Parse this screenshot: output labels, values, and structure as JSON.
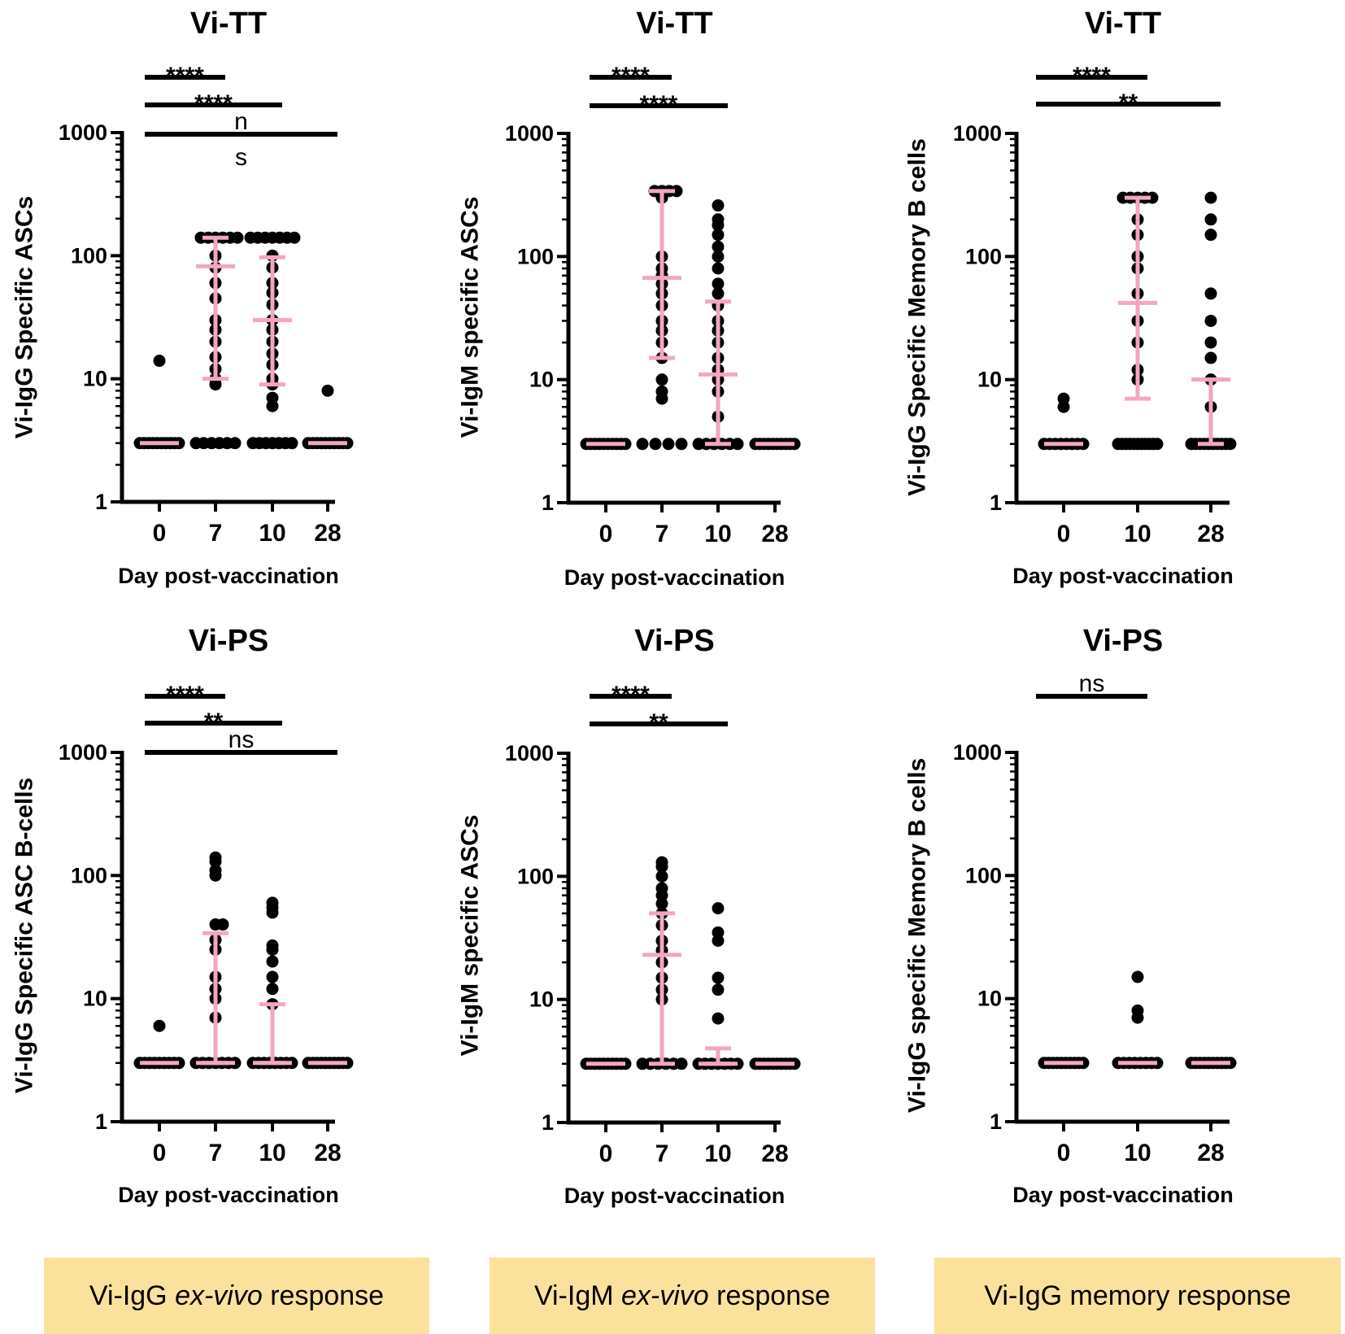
{
  "chart_data": [
    {
      "type": "scatter",
      "panel": "Vi-IgG ex-vivo, Vi-TT",
      "title": "Vi-TT",
      "ylabel": "Vi-IgG Specific ASCs",
      "xlabel": "Day post-vaccination",
      "yscale": "log",
      "ylim": [
        1,
        1000
      ],
      "ytick_labels": [
        "1",
        "10",
        "100",
        "1000"
      ],
      "categories": [
        "0",
        "7",
        "10",
        "28"
      ],
      "points": [
        [
          3,
          3,
          3,
          3,
          3,
          3,
          3,
          3,
          3,
          3,
          14
        ],
        [
          3,
          3,
          3,
          3,
          3,
          3,
          9,
          10,
          12,
          15,
          20,
          25,
          30,
          45,
          60,
          80,
          100,
          140,
          140,
          140,
          140,
          140,
          140
        ],
        [
          3,
          3,
          3,
          3,
          3,
          3,
          3,
          6,
          7,
          9,
          10,
          13,
          16,
          20,
          25,
          30,
          40,
          50,
          60,
          80,
          100,
          140,
          140,
          140,
          140,
          140,
          140,
          140
        ],
        [
          3,
          3,
          3,
          3,
          3,
          3,
          3,
          3,
          3,
          3,
          8
        ]
      ],
      "center": [
        3,
        82,
        30,
        3
      ],
      "error_low": [
        3,
        10,
        9,
        3
      ],
      "error_high": [
        3,
        140,
        97,
        3
      ],
      "significance": [
        {
          "from": "0",
          "to": "7",
          "label": "****"
        },
        {
          "from": "0",
          "to": "10",
          "label": "****"
        },
        {
          "from": "0",
          "to": "28",
          "label": "n",
          "label2": "s"
        }
      ]
    },
    {
      "type": "scatter",
      "panel": "Vi-IgM ex-vivo, Vi-TT",
      "title": "Vi-TT",
      "ylabel": "Vi-IgM specific ASCs",
      "xlabel": "Day post-vaccination",
      "yscale": "log",
      "ylim": [
        1,
        1000
      ],
      "ytick_labels": [
        "1",
        "10",
        "100",
        "1000"
      ],
      "categories": [
        "0",
        "7",
        "10",
        "28"
      ],
      "points": [
        [
          3,
          3,
          3,
          3,
          3,
          3,
          3,
          3,
          3,
          3
        ],
        [
          3,
          3,
          3,
          3,
          7,
          8,
          10,
          15,
          20,
          25,
          30,
          40,
          50,
          60,
          70,
          80,
          100,
          300,
          340,
          340,
          340,
          340
        ],
        [
          3,
          3,
          3,
          3,
          3,
          3,
          5,
          8,
          10,
          12,
          15,
          20,
          25,
          30,
          40,
          50,
          60,
          80,
          100,
          120,
          150,
          180,
          200,
          260
        ],
        [
          3,
          3,
          3,
          3,
          3,
          3,
          3,
          3,
          3,
          3
        ]
      ],
      "center": [
        3,
        67,
        11,
        3
      ],
      "error_low": [
        3,
        15,
        3,
        3
      ],
      "error_high": [
        3,
        340,
        43,
        3
      ],
      "significance": [
        {
          "from": "0",
          "to": "7",
          "label": "****"
        },
        {
          "from": "0",
          "to": "10",
          "label": "****"
        }
      ]
    },
    {
      "type": "scatter",
      "panel": "Vi-IgG memory, Vi-TT",
      "title": "Vi-TT",
      "ylabel": "Vi-IgG Specific Memory B cells",
      "xlabel": "Day post-vaccination",
      "yscale": "log",
      "ylim": [
        1,
        1000
      ],
      "ytick_labels": [
        "1",
        "10",
        "100",
        "1000"
      ],
      "categories": [
        "0",
        "10",
        "28"
      ],
      "points": [
        [
          3,
          3,
          3,
          3,
          3,
          3,
          3,
          3,
          6,
          7
        ],
        [
          3,
          3,
          3,
          3,
          3,
          3,
          3,
          3,
          3,
          3,
          3,
          10,
          12,
          20,
          30,
          50,
          80,
          100,
          150,
          200,
          300,
          300,
          300,
          300,
          300
        ],
        [
          3,
          3,
          3,
          3,
          3,
          3,
          3,
          3,
          3,
          3,
          6,
          10,
          15,
          20,
          30,
          50,
          150,
          200,
          300
        ]
      ],
      "center": [
        3,
        42,
        10
      ],
      "error_low": [
        3,
        7,
        3
      ],
      "error_high": [
        3,
        300,
        10
      ],
      "significance": [
        {
          "from": "0",
          "to": "10",
          "label": "****"
        },
        {
          "from": "0",
          "to": "28",
          "label": "**"
        }
      ]
    },
    {
      "type": "scatter",
      "panel": "Vi-IgG ex-vivo, Vi-PS",
      "title": "Vi-PS",
      "ylabel": "Vi-IgG Specific ASC B-cells",
      "xlabel": "Day post-vaccination",
      "yscale": "log",
      "ylim": [
        1,
        1000
      ],
      "ytick_labels": [
        "1",
        "10",
        "100",
        "1000"
      ],
      "categories": [
        "0",
        "7",
        "10",
        "28"
      ],
      "points": [
        [
          3,
          3,
          3,
          3,
          3,
          3,
          3,
          3,
          3,
          6
        ],
        [
          3,
          3,
          3,
          3,
          3,
          3,
          3,
          7,
          10,
          12,
          15,
          25,
          30,
          40,
          40,
          100,
          110,
          130,
          140
        ],
        [
          3,
          3,
          3,
          3,
          3,
          3,
          3,
          3,
          9,
          12,
          15,
          20,
          25,
          27,
          50,
          55,
          60
        ],
        [
          3,
          3,
          3,
          3,
          3,
          3,
          3,
          3,
          3,
          3
        ]
      ],
      "center": [
        3,
        3,
        3,
        3
      ],
      "error_low": [
        3,
        3,
        3,
        3
      ],
      "error_high": [
        3,
        34,
        9,
        3
      ],
      "significance": [
        {
          "from": "0",
          "to": "7",
          "label": "****"
        },
        {
          "from": "0",
          "to": "10",
          "label": "**"
        },
        {
          "from": "0",
          "to": "28",
          "label": "ns"
        }
      ]
    },
    {
      "type": "scatter",
      "panel": "Vi-IgM ex-vivo, Vi-PS",
      "title": "Vi-PS",
      "ylabel": "Vi-IgM specific ASCs",
      "xlabel": "Day post-vaccination",
      "yscale": "log",
      "ylim": [
        1,
        1000
      ],
      "ytick_labels": [
        "1",
        "10",
        "100",
        "1000"
      ],
      "categories": [
        "0",
        "7",
        "10",
        "28"
      ],
      "points": [
        [
          3,
          3,
          3,
          3,
          3,
          3,
          3,
          3,
          3,
          3
        ],
        [
          3,
          3,
          3,
          3,
          3,
          3,
          10,
          12,
          15,
          20,
          25,
          30,
          40,
          50,
          60,
          70,
          80,
          100,
          120,
          130
        ],
        [
          3,
          3,
          3,
          3,
          3,
          3,
          3,
          7,
          12,
          15,
          30,
          35,
          55
        ],
        [
          3,
          3,
          3,
          3,
          3,
          3,
          3,
          3,
          3,
          3
        ]
      ],
      "center": [
        3,
        23,
        3,
        3
      ],
      "error_low": [
        3,
        3,
        3,
        3
      ],
      "error_high": [
        3,
        50,
        4,
        3
      ],
      "significance": [
        {
          "from": "0",
          "to": "7",
          "label": "****"
        },
        {
          "from": "0",
          "to": "10",
          "label": "**"
        }
      ]
    },
    {
      "type": "scatter",
      "panel": "Vi-IgG memory, Vi-PS",
      "title": "Vi-PS",
      "ylabel": "Vi-IgG specific Memory B cells",
      "xlabel": "Day post-vaccination",
      "yscale": "log",
      "ylim": [
        1,
        1000
      ],
      "ytick_labels": [
        "1",
        "10",
        "100",
        "1000"
      ],
      "categories": [
        "0",
        "10",
        "28"
      ],
      "points": [
        [
          3,
          3,
          3,
          3,
          3,
          3,
          3,
          3,
          3,
          3
        ],
        [
          3,
          3,
          3,
          3,
          3,
          3,
          3,
          3,
          7,
          8,
          15
        ],
        [
          3,
          3,
          3,
          3,
          3,
          3,
          3,
          3,
          3,
          3
        ]
      ],
      "center": [
        3,
        3,
        3
      ],
      "error_low": [
        3,
        3,
        3
      ],
      "error_high": [
        3,
        3,
        3
      ],
      "significance": [
        {
          "from": "0",
          "to": "10",
          "label": "ns"
        }
      ]
    }
  ],
  "legend": {
    "box1": {
      "pre": "Vi-IgG ",
      "em": "ex-vivo",
      "post": " response"
    },
    "box2": {
      "pre": "Vi-IgM ",
      "em": "ex-vivo",
      "post": " response"
    },
    "box3": {
      "text": "Vi-IgG memory response"
    }
  },
  "colors": {
    "marker": "#000000",
    "errorbar": "#f2a6c4",
    "legend_bg": "#fbe29c"
  }
}
